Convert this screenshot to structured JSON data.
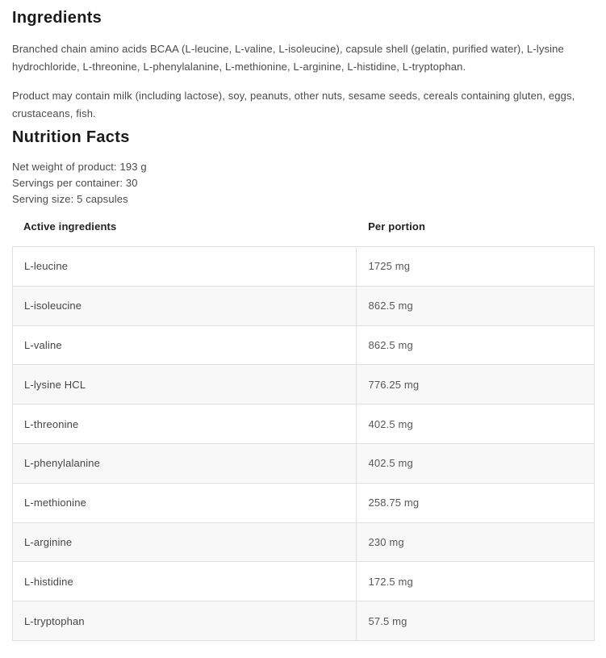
{
  "ingredients_section": {
    "title": "Ingredients",
    "paragraphs": [
      "Branched chain amino acids BCAA (L-leucine, L-valine, L-isoleucine), capsule shell (gelatin, purified water), L-lysine hydrochloride, L-threonine, L-phenylalanine, L-methionine, L-arginine, L-histidine, L-tryptophan.",
      "Product may contain milk (including lactose), soy, peanuts, other nuts, sesame seeds, cereals containing gluten, eggs, crustaceans, fish."
    ]
  },
  "nutrition_section": {
    "title": "Nutrition Facts",
    "meta_lines": [
      "Net weight of product: 193 g",
      "Servings per container: 30",
      "Serving size: 5 capsules"
    ],
    "table": {
      "headers": [
        "Active ingredients",
        "Per portion"
      ],
      "rows": [
        {
          "name": "L-leucine",
          "amount": "1725 mg"
        },
        {
          "name": "L-isoleucine",
          "amount": "862.5 mg"
        },
        {
          "name": "L-valine",
          "amount": "862.5 mg"
        },
        {
          "name": "L-lysine HCL",
          "amount": "776.25 mg"
        },
        {
          "name": "L-threonine",
          "amount": "402.5 mg"
        },
        {
          "name": "L-phenylalanine",
          "amount": "402.5 mg"
        },
        {
          "name": "L-methionine",
          "amount": "258.75 mg"
        },
        {
          "name": "L-arginine",
          "amount": "230 mg"
        },
        {
          "name": "L-histidine",
          "amount": "172.5 mg"
        },
        {
          "name": "L-tryptophan",
          "amount": "57.5 mg"
        }
      ]
    }
  },
  "colors": {
    "heading": "#1a1a1a",
    "body_text": "#4a4a4a",
    "table_border": "#e0e0e0",
    "alt_row_bg": "#f8f8f8",
    "header_text": "#222222",
    "cell_name_text": "#454545",
    "cell_value_text": "#575757"
  }
}
